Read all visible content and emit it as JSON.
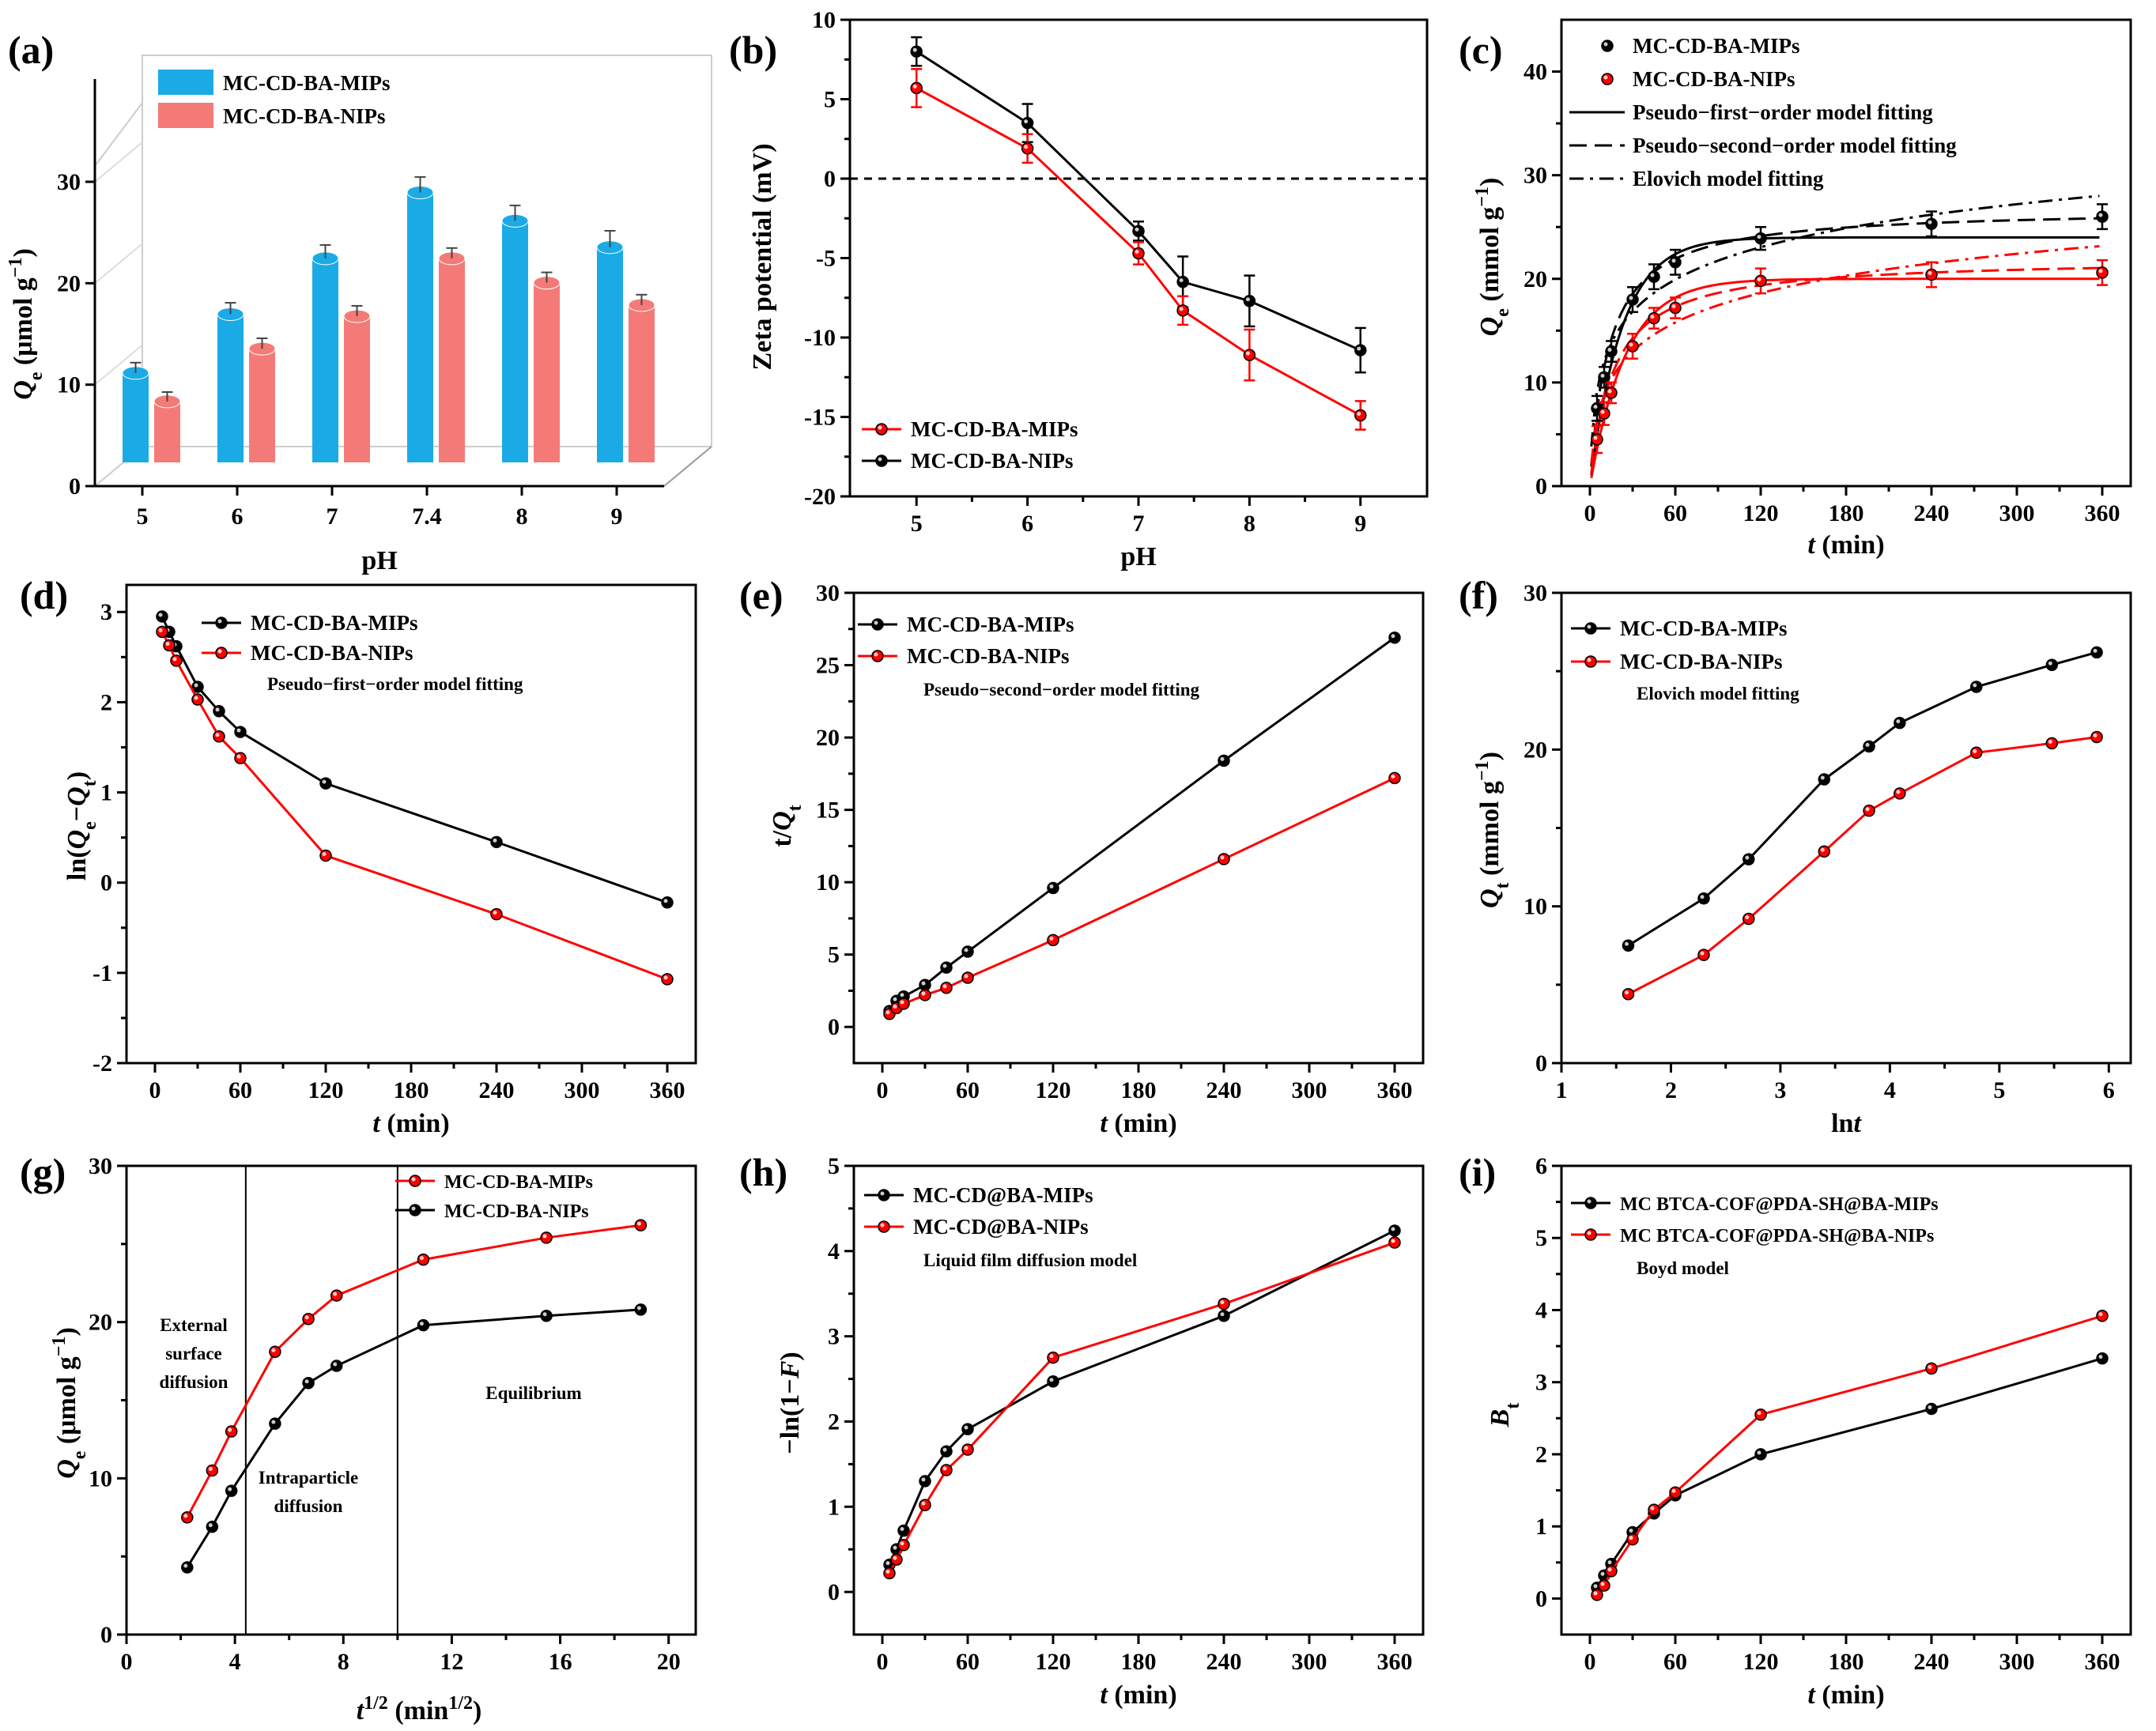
{
  "colors": {
    "black": "#000000",
    "red": "#ff0000",
    "blue": "#1aabe6",
    "salmon": "#f47a78"
  },
  "chart_data": [
    {
      "id": "a",
      "type": "bar",
      "panel_label": "(a)",
      "xlabel": "pH",
      "ylabel": "Qe (μmol g⁻¹)",
      "categories": [
        "5",
        "6",
        "7",
        "7.4",
        "8",
        "9"
      ],
      "yticks": [
        0,
        10,
        20,
        30
      ],
      "ylim": [
        0,
        30
      ],
      "series": [
        {
          "name": "MC-CD-BA-MIPs",
          "values": [
            9.2,
            15.0,
            20.5,
            27.0,
            24.2,
            21.6
          ],
          "errors": [
            0.4,
            0.5,
            0.7,
            0.9,
            0.9,
            1.0
          ]
        },
        {
          "name": "MC-CD-BA-NIPs",
          "values": [
            6.4,
            11.6,
            14.8,
            20.5,
            18.1,
            15.9
          ],
          "errors": [
            0.3,
            0.4,
            0.4,
            0.4,
            0.4,
            0.4
          ]
        }
      ]
    },
    {
      "id": "b",
      "type": "line",
      "panel_label": "(b)",
      "xlabel": "pH",
      "ylabel": "Zeta potential (mV)",
      "xlim": [
        4.4,
        9.6
      ],
      "ylim": [
        -20,
        10
      ],
      "xticks": [
        5,
        6,
        7,
        8,
        9
      ],
      "yticks": [
        -20,
        -15,
        -10,
        -5,
        0,
        5,
        10
      ],
      "reference_line_y": 0,
      "series": [
        {
          "name": "MC-CD-BA-MIPs",
          "x": [
            5,
            6,
            7,
            7.4,
            8,
            9
          ],
          "y": [
            5.7,
            1.9,
            -4.7,
            -8.3,
            -11.1,
            -14.9
          ],
          "errors": [
            1.2,
            0.9,
            0.7,
            0.9,
            1.6,
            0.9
          ]
        },
        {
          "name": "MC-CD-BA-NIPs",
          "x": [
            5,
            6,
            7,
            7.4,
            8,
            9
          ],
          "y": [
            8.0,
            3.5,
            -3.3,
            -6.5,
            -7.7,
            -10.8
          ],
          "errors": [
            0.9,
            1.2,
            0.6,
            1.6,
            1.6,
            1.4
          ]
        }
      ]
    },
    {
      "id": "c",
      "type": "scatter",
      "panel_label": "(c)",
      "xlabel": "t (min)",
      "ylabel": "Qe (mmol g⁻¹)",
      "xlim": [
        -20,
        380
      ],
      "ylim": [
        0,
        45
      ],
      "xticks": [
        0,
        60,
        120,
        180,
        240,
        300,
        360
      ],
      "yticks": [
        0,
        10,
        20,
        30,
        40
      ],
      "series": [
        {
          "name": "MC-CD-BA-MIPs",
          "x": [
            5,
            10,
            15,
            30,
            45,
            60,
            120,
            240,
            360
          ],
          "y": [
            7.5,
            10.5,
            13.0,
            18.0,
            20.2,
            21.6,
            23.9,
            25.3,
            26.0
          ],
          "errors": [
            1.2,
            1.0,
            1.0,
            1.2,
            1.2,
            1.2,
            1.1,
            1.2,
            1.2
          ]
        },
        {
          "name": "MC-CD-BA-NIPs",
          "x": [
            5,
            10,
            15,
            30,
            45,
            60,
            120,
            240,
            360
          ],
          "y": [
            4.5,
            7.0,
            9.0,
            13.5,
            16.2,
            17.2,
            19.8,
            20.4,
            20.6
          ],
          "errors": [
            1.3,
            1.1,
            1.0,
            1.2,
            1.0,
            1.0,
            1.2,
            1.2,
            1.2
          ]
        }
      ],
      "fits": [
        {
          "name": "Pseudo−first−order model fitting",
          "style": "solid"
        },
        {
          "name": "Pseudo−second−order model fitting",
          "style": "dashed"
        },
        {
          "name": "Elovich model fitting",
          "style": "dashdot"
        }
      ]
    },
    {
      "id": "d",
      "type": "line",
      "panel_label": "(d)",
      "xlabel": "t (min)",
      "ylabel": "ln(Qe−Qt)",
      "xlim": [
        -20,
        380
      ],
      "ylim": [
        -2,
        3.3
      ],
      "xticks": [
        0,
        60,
        120,
        180,
        240,
        300,
        360
      ],
      "yticks": [
        -2,
        -1,
        0,
        1,
        2,
        3
      ],
      "annotation": "Pseudo−first−order model fitting",
      "series": [
        {
          "name": "MC-CD-BA-MIPs",
          "x": [
            5,
            10,
            15,
            30,
            45,
            60,
            120,
            240,
            360
          ],
          "y": [
            2.95,
            2.78,
            2.62,
            2.17,
            1.9,
            1.67,
            1.1,
            0.45,
            -0.22
          ]
        },
        {
          "name": "MC-CD-BA-NIPs",
          "x": [
            5,
            10,
            15,
            30,
            45,
            60,
            120,
            240,
            360
          ],
          "y": [
            2.78,
            2.63,
            2.46,
            2.03,
            1.62,
            1.38,
            0.3,
            -0.35,
            -1.07
          ]
        }
      ]
    },
    {
      "id": "e",
      "type": "line",
      "panel_label": "(e)",
      "xlabel": "t (min)",
      "ylabel": "t/Qt",
      "xlim": [
        -20,
        380
      ],
      "ylim": [
        -2.5,
        30
      ],
      "xticks": [
        0,
        60,
        120,
        180,
        240,
        300,
        360
      ],
      "yticks": [
        0,
        5,
        10,
        15,
        20,
        25,
        30
      ],
      "annotation": "Pseudo−second−order model fitting",
      "series": [
        {
          "name": "MC-CD-BA-MIPs",
          "x": [
            5,
            10,
            15,
            30,
            45,
            60,
            120,
            240,
            360
          ],
          "y": [
            1.1,
            1.8,
            2.1,
            2.9,
            4.1,
            5.2,
            9.6,
            18.4,
            26.9
          ]
        },
        {
          "name": "MC-CD-BA-NIPs",
          "x": [
            5,
            10,
            15,
            30,
            45,
            60,
            120,
            240,
            360
          ],
          "y": [
            0.9,
            1.3,
            1.6,
            2.2,
            2.7,
            3.4,
            6.0,
            11.6,
            17.2
          ]
        }
      ]
    },
    {
      "id": "f",
      "type": "line",
      "panel_label": "(f)",
      "xlabel": "lnt",
      "ylabel": "Qt (mmol g⁻¹)",
      "xlim": [
        1,
        6.2
      ],
      "ylim": [
        0,
        30
      ],
      "xticks": [
        1,
        2,
        3,
        4,
        5,
        6
      ],
      "yticks": [
        0,
        10,
        20,
        30
      ],
      "annotation": "Elovich model fitting",
      "series": [
        {
          "name": "MC-CD-BA-MIPs",
          "x": [
            1.61,
            2.3,
            2.71,
            3.4,
            3.81,
            4.09,
            4.79,
            5.48,
            5.89
          ],
          "y": [
            7.5,
            10.5,
            13.0,
            18.1,
            20.2,
            21.7,
            24.0,
            25.4,
            26.2
          ]
        },
        {
          "name": "MC-CD-BA-NIPs",
          "x": [
            1.61,
            2.3,
            2.71,
            3.4,
            3.81,
            4.09,
            4.79,
            5.48,
            5.89
          ],
          "y": [
            4.4,
            6.9,
            9.2,
            13.5,
            16.1,
            17.2,
            19.8,
            20.4,
            20.8
          ]
        }
      ]
    },
    {
      "id": "g",
      "type": "line",
      "panel_label": "(g)",
      "xlabel": "t1/2 (min1/2)",
      "ylabel": "Qe (μmol g⁻¹)",
      "xlim": [
        0,
        21
      ],
      "ylim": [
        0,
        30
      ],
      "xticks": [
        0,
        4,
        8,
        12,
        16,
        20
      ],
      "yticks": [
        0,
        10,
        20,
        30
      ],
      "vlines": [
        4.4,
        10.0
      ],
      "regions": [
        "External",
        "surface",
        "diffusion",
        "Intraparticle",
        "diffusion",
        "Equilibrium"
      ],
      "series": [
        {
          "name": "MC-CD-BA-MIPs",
          "x": [
            2.24,
            3.16,
            3.87,
            5.48,
            6.71,
            7.75,
            10.95,
            15.49,
            18.97
          ],
          "y": [
            7.5,
            10.5,
            13.0,
            18.1,
            20.2,
            21.7,
            24.0,
            25.4,
            26.2
          ]
        },
        {
          "name": "MC-CD-BA-NIPs",
          "x": [
            2.24,
            3.16,
            3.87,
            5.48,
            6.71,
            7.75,
            10.95,
            15.49,
            18.97
          ],
          "y": [
            4.3,
            6.9,
            9.2,
            13.5,
            16.1,
            17.2,
            19.8,
            20.4,
            20.8
          ]
        }
      ]
    },
    {
      "id": "h",
      "type": "line",
      "panel_label": "(h)",
      "xlabel": "t (min)",
      "ylabel": "−ln(1−F)",
      "xlim": [
        -20,
        380
      ],
      "ylim": [
        -0.5,
        5
      ],
      "xticks": [
        0,
        60,
        120,
        180,
        240,
        300,
        360
      ],
      "yticks": [
        0,
        1,
        2,
        3,
        4,
        5
      ],
      "annotation": "Liquid film diffusion model",
      "series": [
        {
          "name": "MC-CD@BA-MIPs",
          "x": [
            5,
            10,
            15,
            30,
            45,
            60,
            120,
            240,
            360
          ],
          "y": [
            0.32,
            0.5,
            0.72,
            1.3,
            1.65,
            1.91,
            2.47,
            3.24,
            4.24
          ]
        },
        {
          "name": "MC-CD@BA-NIPs",
          "x": [
            5,
            10,
            15,
            30,
            45,
            60,
            120,
            240,
            360
          ],
          "y": [
            0.22,
            0.38,
            0.55,
            1.02,
            1.43,
            1.67,
            2.75,
            3.38,
            4.1
          ]
        }
      ]
    },
    {
      "id": "i",
      "type": "line",
      "panel_label": "(i)",
      "xlabel": "t (min)",
      "ylabel": "Bt",
      "xlim": [
        -20,
        380
      ],
      "ylim": [
        -0.5,
        6
      ],
      "xticks": [
        0,
        60,
        120,
        180,
        240,
        300,
        360
      ],
      "yticks": [
        0,
        1,
        2,
        3,
        4,
        5,
        6
      ],
      "annotation": "Boyd model",
      "series": [
        {
          "name": "MC BTCA-COF@PDA-SH@BA-MIPs",
          "x": [
            5,
            10,
            15,
            30,
            45,
            60,
            120,
            240,
            360
          ],
          "y": [
            0.15,
            0.32,
            0.48,
            0.92,
            1.18,
            1.43,
            2.0,
            2.63,
            3.33
          ]
        },
        {
          "name": "MC BTCA-COF@PDA-SH@BA-NIPs",
          "x": [
            5,
            10,
            15,
            30,
            45,
            60,
            120,
            240,
            360
          ],
          "y": [
            0.05,
            0.18,
            0.38,
            0.82,
            1.23,
            1.47,
            2.55,
            3.19,
            3.92
          ]
        }
      ]
    }
  ]
}
